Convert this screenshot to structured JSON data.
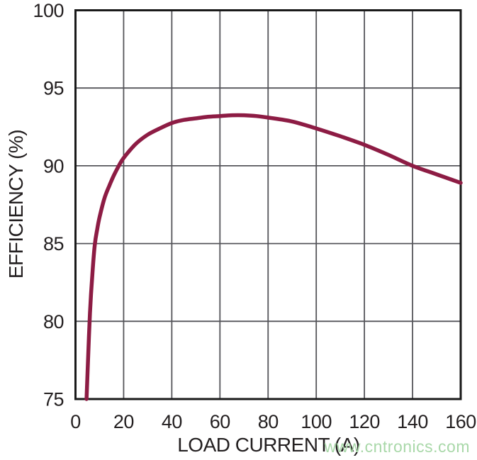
{
  "watermark": {
    "text": "www.cntronics.com",
    "color": "#a9d8a9"
  },
  "colors": {
    "curve": "#8d1c44",
    "grid": "#55555a",
    "frame": "#1a1a1a",
    "text": "#231f20",
    "background": "#ffffff"
  },
  "chart_data": {
    "type": "line",
    "title": "",
    "xlabel": "LOAD CURRENT (A)",
    "ylabel": "EFFICIENCY (%)",
    "xlim": [
      0,
      160
    ],
    "ylim": [
      75,
      100
    ],
    "xticks": [
      0,
      20,
      40,
      60,
      80,
      100,
      120,
      140,
      160
    ],
    "yticks": [
      75,
      80,
      85,
      90,
      95,
      100
    ],
    "grid": true,
    "legend": "none",
    "series": [
      {
        "name": "efficiency",
        "color": "#8d1c44",
        "x": [
          4.6,
          5.2,
          6,
          7,
          8,
          9,
          10,
          12,
          14,
          16,
          18,
          20,
          25,
          30,
          35,
          40,
          45,
          50,
          55,
          60,
          65,
          70,
          75,
          80,
          90,
          100,
          110,
          120,
          130,
          140,
          150,
          160
        ],
        "y": [
          75,
          77.5,
          80.5,
          83,
          84.9,
          85.9,
          86.7,
          87.9,
          88.7,
          89.4,
          90.0,
          90.5,
          91.4,
          92.0,
          92.4,
          92.75,
          92.95,
          93.05,
          93.15,
          93.2,
          93.25,
          93.25,
          93.2,
          93.1,
          92.85,
          92.4,
          91.9,
          91.35,
          90.7,
          90.0,
          89.45,
          88.9
        ]
      }
    ]
  }
}
